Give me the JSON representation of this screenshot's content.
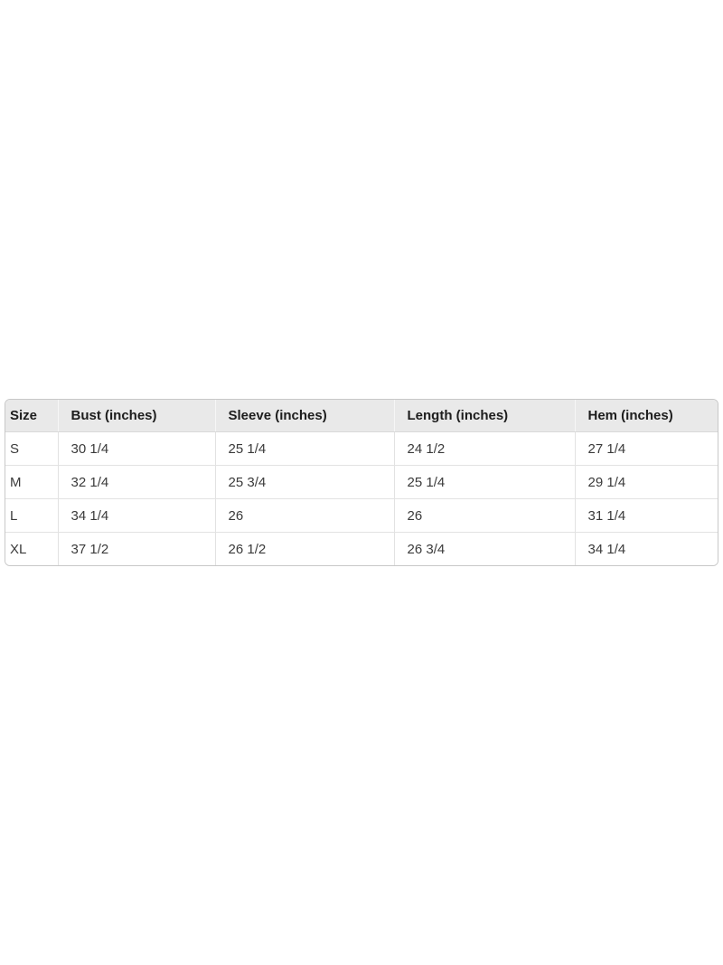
{
  "table": {
    "title": "size-chart",
    "columns": [
      "Size",
      "Bust (inches)",
      "Sleeve (inches)",
      "Length (inches)",
      "Hem (inches)"
    ],
    "rows": [
      [
        "S",
        "30 1/4",
        "25 1/4",
        "24 1/2",
        "27 1/4"
      ],
      [
        "M",
        "32 1/4",
        "25 3/4",
        "25 1/4",
        "29 1/4"
      ],
      [
        "L",
        "34 1/4",
        "26",
        "26",
        "31 1/4"
      ],
      [
        "XL",
        "37 1/2",
        "26 1/2",
        "26 3/4",
        "34 1/4"
      ]
    ]
  },
  "colors": {
    "page_bg": "#ffffff",
    "header_bg": "#e9e9e9",
    "outer_border": "#c8c8c8",
    "inner_border": "#e2e2e2",
    "header_divider": "#f6f6f6",
    "header_text": "#1d1d1d",
    "body_text": "#3a3a3a"
  }
}
